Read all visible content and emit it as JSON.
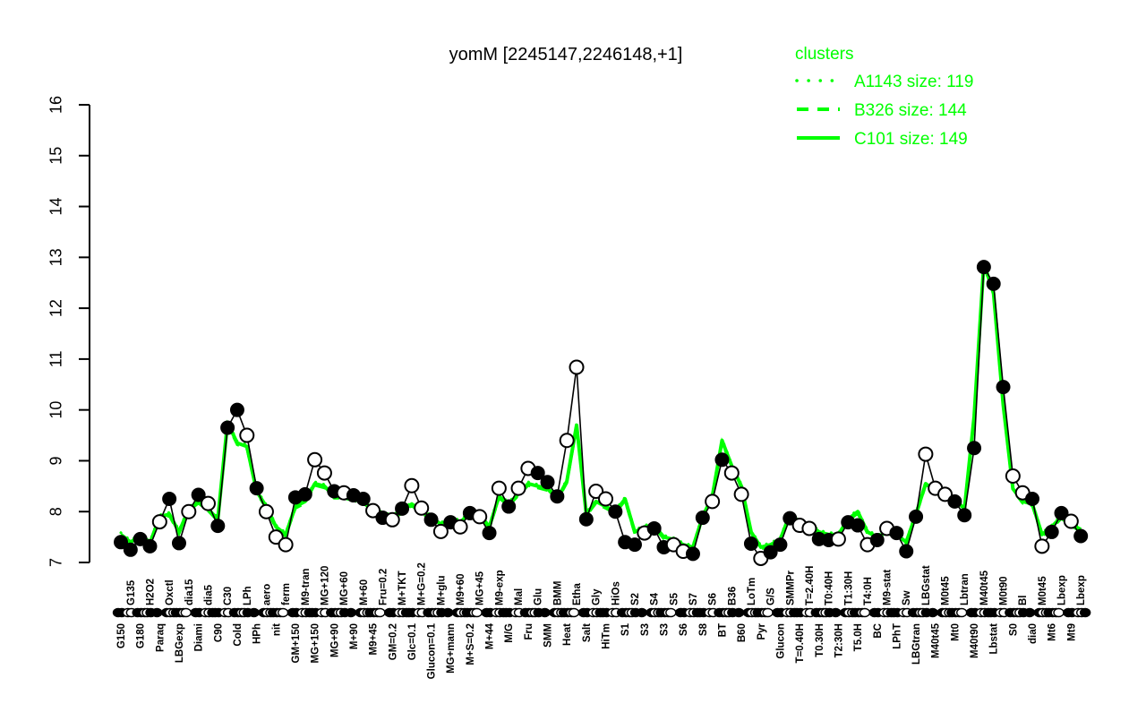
{
  "title": "yomM [2245147,2246148,+1]",
  "legend": {
    "title": "clusters",
    "entries": [
      {
        "style": "dotted",
        "label": "A1143 size: 119"
      },
      {
        "style": "dashed",
        "label": "B326 size: 144"
      },
      {
        "style": "solid",
        "label": "C101 size: 149"
      }
    ]
  },
  "colors": {
    "cluster_green": "#00ff00",
    "series_black": "#000000",
    "open_marker_fill": "#ffffff",
    "background": "#ffffff"
  },
  "y_axis": {
    "ticks": [
      7,
      8,
      9,
      10,
      11,
      12,
      13,
      14,
      15,
      16
    ]
  },
  "chart_data": {
    "type": "line",
    "title": "yomM [2245147,2246148,+1]",
    "ylim": [
      7,
      16
    ],
    "grid": false,
    "legend_position": "top-right",
    "categories": [
      "G150",
      "G135",
      "G180",
      "H2O2",
      "Paraq",
      "Oxctl",
      "LBGexp",
      "dia15",
      "Diami",
      "dia5",
      "C90",
      "C30",
      "Cold",
      "LPh",
      "HPh",
      "aero",
      "nit",
      "ferm",
      "GM+150",
      "M9-tran",
      "MG+150",
      "MG+120",
      "MG+90",
      "MG+60",
      "M+90",
      "M+60",
      "M9+45",
      "Fru=0.2",
      "GM=0.2",
      "M+TKT",
      "Glc=0.1",
      "M+G=0.2",
      "Glucon=0.1",
      "M+glu",
      "MG+mann",
      "M9+60",
      "M+S=0.2",
      "MG+45",
      "M+44",
      "M9-exp",
      "M/G",
      "Mal",
      "Fru",
      "Glu",
      "SMM",
      "BMM",
      "Heat",
      "Etha",
      "Salt",
      "Gly",
      "HiTm",
      "HiOs",
      "S1",
      "S2",
      "S3",
      "S4",
      "S3",
      "S5",
      "S6",
      "S7",
      "S8",
      "S6",
      "BT",
      "B36",
      "B60",
      "LoTm",
      "Pyr",
      "G/S",
      "Glucon",
      "SMMPr",
      "T=0.40H",
      "T=2.40H",
      "T0.30H",
      "T0:40H",
      "T2:30H",
      "T1:30H",
      "T5.0H",
      "T4:0H",
      "BC",
      "M9-stat",
      "LPhT",
      "Sw",
      "LBGtran",
      "LBGstat",
      "M40t45",
      "M0t45",
      "Mt0",
      "Lbtran",
      "M40t90",
      "M40t45",
      "Lbstat",
      "M0t90",
      "S0",
      "Bl",
      "dia0",
      "M0t45",
      "Mt6",
      "Lbexp",
      "Mt9",
      "Lbexp"
    ],
    "series": [
      {
        "name": "gene_profile",
        "color": "#000000",
        "values": [
          7.4,
          7.25,
          7.46,
          7.32,
          7.8,
          8.25,
          7.38,
          8.0,
          8.33,
          8.16,
          7.72,
          9.65,
          10.0,
          9.5,
          8.46,
          8.0,
          7.5,
          7.35,
          8.28,
          8.34,
          9.02,
          8.76,
          8.4,
          8.37,
          8.32,
          8.25,
          8.02,
          7.88,
          7.84,
          8.06,
          8.51,
          8.07,
          7.84,
          7.61,
          7.79,
          7.7,
          7.97,
          7.9,
          7.58,
          8.46,
          8.1,
          8.46,
          8.85,
          8.76,
          8.58,
          8.3,
          9.4,
          10.84,
          7.85,
          8.4,
          8.25,
          8.0,
          7.4,
          7.35,
          7.58,
          7.67,
          7.3,
          7.35,
          7.22,
          7.17,
          7.88,
          8.2,
          9.02,
          8.76,
          8.34,
          7.37,
          7.08,
          7.2,
          7.35,
          7.87,
          7.73,
          7.67,
          7.46,
          7.44,
          7.46,
          7.79,
          7.73,
          7.35,
          7.44,
          7.67,
          7.58,
          7.22,
          7.9,
          9.13,
          8.46,
          8.34,
          8.2,
          7.93,
          9.25,
          12.81,
          12.48,
          10.45,
          8.7,
          8.37,
          8.25,
          7.32,
          7.6,
          7.97,
          7.81,
          7.52
        ],
        "marker": [
          "f",
          "f",
          "f",
          "f",
          "o",
          "f",
          "f",
          "o",
          "f",
          "o",
          "f",
          "f",
          "f",
          "o",
          "f",
          "o",
          "o",
          "o",
          "f",
          "f",
          "o",
          "o",
          "f",
          "o",
          "f",
          "f",
          "o",
          "f",
          "o",
          "f",
          "o",
          "o",
          "f",
          "o",
          "f",
          "o",
          "f",
          "o",
          "f",
          "o",
          "f",
          "o",
          "o",
          "f",
          "f",
          "f",
          "o",
          "o",
          "f",
          "o",
          "o",
          "f",
          "f",
          "f",
          "o",
          "f",
          "f",
          "o",
          "o",
          "f",
          "f",
          "o",
          "f",
          "o",
          "o",
          "f",
          "o",
          "f",
          "f",
          "f",
          "o",
          "o",
          "f",
          "f",
          "o",
          "f",
          "f",
          "o",
          "f",
          "o",
          "f",
          "f",
          "f",
          "o",
          "o",
          "o",
          "f",
          "f",
          "f",
          "f",
          "f",
          "f",
          "o",
          "o",
          "f",
          "o",
          "f",
          "f",
          "o",
          "f"
        ]
      },
      {
        "name": "cluster_mean",
        "color": "#00ff00",
        "values": [
          7.55,
          7.4,
          7.52,
          7.38,
          7.9,
          7.95,
          7.6,
          8.05,
          8.2,
          8.05,
          7.85,
          9.75,
          9.35,
          9.28,
          8.4,
          8.1,
          7.7,
          7.55,
          8.1,
          8.2,
          8.55,
          8.5,
          8.3,
          8.3,
          8.25,
          8.2,
          8.05,
          7.95,
          7.9,
          8.0,
          8.15,
          8.0,
          7.9,
          7.75,
          7.85,
          7.8,
          7.95,
          7.95,
          7.7,
          8.3,
          8.15,
          8.35,
          8.55,
          8.5,
          8.45,
          8.25,
          8.6,
          9.7,
          7.95,
          8.2,
          8.1,
          8.0,
          8.25,
          7.6,
          7.7,
          7.72,
          7.5,
          7.45,
          7.35,
          7.3,
          7.9,
          8.3,
          9.4,
          8.9,
          8.5,
          7.6,
          7.3,
          7.35,
          7.45,
          7.95,
          7.8,
          7.75,
          7.6,
          7.55,
          7.55,
          7.85,
          8.0,
          7.6,
          7.5,
          7.6,
          7.55,
          7.4,
          7.95,
          8.55,
          8.4,
          8.3,
          8.25,
          8.05,
          9.87,
          12.88,
          12.3,
          10.1,
          8.45,
          8.2,
          8.15,
          7.55,
          7.7,
          7.9,
          7.75,
          7.65
        ]
      }
    ],
    "axis_marks_cycle": [
      "ff",
      "oo",
      "ffo",
      "of",
      "f",
      "foo",
      "ffo",
      "o",
      "ff",
      "oof"
    ]
  }
}
